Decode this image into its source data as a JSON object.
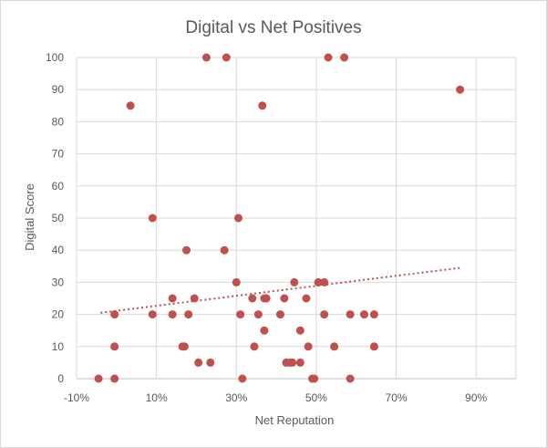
{
  "chart_data": {
    "type": "scatter",
    "title": "Digital vs Net Positives",
    "xlabel": "Net Reputation",
    "ylabel": "Digital Score",
    "xlim": [
      -0.1,
      1.0
    ],
    "ylim": [
      0,
      100
    ],
    "x_ticks": [
      -0.1,
      0.1,
      0.3,
      0.5,
      0.7,
      0.9
    ],
    "x_tick_labels": [
      "-10%",
      "10%",
      "30%",
      "50%",
      "70%",
      "90%"
    ],
    "y_ticks": [
      0,
      10,
      20,
      30,
      40,
      50,
      60,
      70,
      80,
      90,
      100
    ],
    "y_tick_labels": [
      "0",
      "10",
      "20",
      "30",
      "40",
      "50",
      "60",
      "70",
      "80",
      "90",
      "100"
    ],
    "grid": true,
    "marker_color": "#c0504d",
    "trendline": {
      "type": "linear",
      "style": "dotted",
      "color": "#c0504d",
      "x": [
        -0.04,
        0.86
      ],
      "y": [
        20.5,
        34.5
      ]
    },
    "points": [
      {
        "x": -0.045,
        "y": 0
      },
      {
        "x": -0.005,
        "y": 20
      },
      {
        "x": -0.005,
        "y": 10
      },
      {
        "x": -0.005,
        "y": 0
      },
      {
        "x": 0.035,
        "y": 85
      },
      {
        "x": 0.09,
        "y": 50
      },
      {
        "x": 0.09,
        "y": 20
      },
      {
        "x": 0.14,
        "y": 25
      },
      {
        "x": 0.14,
        "y": 20
      },
      {
        "x": 0.165,
        "y": 10
      },
      {
        "x": 0.17,
        "y": 10
      },
      {
        "x": 0.175,
        "y": 40
      },
      {
        "x": 0.18,
        "y": 20
      },
      {
        "x": 0.195,
        "y": 25
      },
      {
        "x": 0.205,
        "y": 5
      },
      {
        "x": 0.225,
        "y": 100
      },
      {
        "x": 0.235,
        "y": 5
      },
      {
        "x": 0.27,
        "y": 40
      },
      {
        "x": 0.275,
        "y": 100
      },
      {
        "x": 0.3,
        "y": 30
      },
      {
        "x": 0.305,
        "y": 50
      },
      {
        "x": 0.31,
        "y": 20
      },
      {
        "x": 0.315,
        "y": 0
      },
      {
        "x": 0.34,
        "y": 25
      },
      {
        "x": 0.345,
        "y": 10
      },
      {
        "x": 0.355,
        "y": 20
      },
      {
        "x": 0.365,
        "y": 85
      },
      {
        "x": 0.37,
        "y": 25
      },
      {
        "x": 0.37,
        "y": 15
      },
      {
        "x": 0.375,
        "y": 25
      },
      {
        "x": 0.41,
        "y": 20
      },
      {
        "x": 0.42,
        "y": 25
      },
      {
        "x": 0.425,
        "y": 5
      },
      {
        "x": 0.435,
        "y": 5
      },
      {
        "x": 0.44,
        "y": 5
      },
      {
        "x": 0.445,
        "y": 30
      },
      {
        "x": 0.46,
        "y": 15
      },
      {
        "x": 0.46,
        "y": 5
      },
      {
        "x": 0.475,
        "y": 25
      },
      {
        "x": 0.48,
        "y": 10
      },
      {
        "x": 0.49,
        "y": 0
      },
      {
        "x": 0.495,
        "y": 0
      },
      {
        "x": 0.505,
        "y": 30
      },
      {
        "x": 0.52,
        "y": 30
      },
      {
        "x": 0.52,
        "y": 20
      },
      {
        "x": 0.53,
        "y": 100
      },
      {
        "x": 0.545,
        "y": 10
      },
      {
        "x": 0.57,
        "y": 100
      },
      {
        "x": 0.585,
        "y": 20
      },
      {
        "x": 0.585,
        "y": 0
      },
      {
        "x": 0.62,
        "y": 20
      },
      {
        "x": 0.645,
        "y": 20
      },
      {
        "x": 0.645,
        "y": 10
      },
      {
        "x": 0.86,
        "y": 90
      }
    ]
  }
}
